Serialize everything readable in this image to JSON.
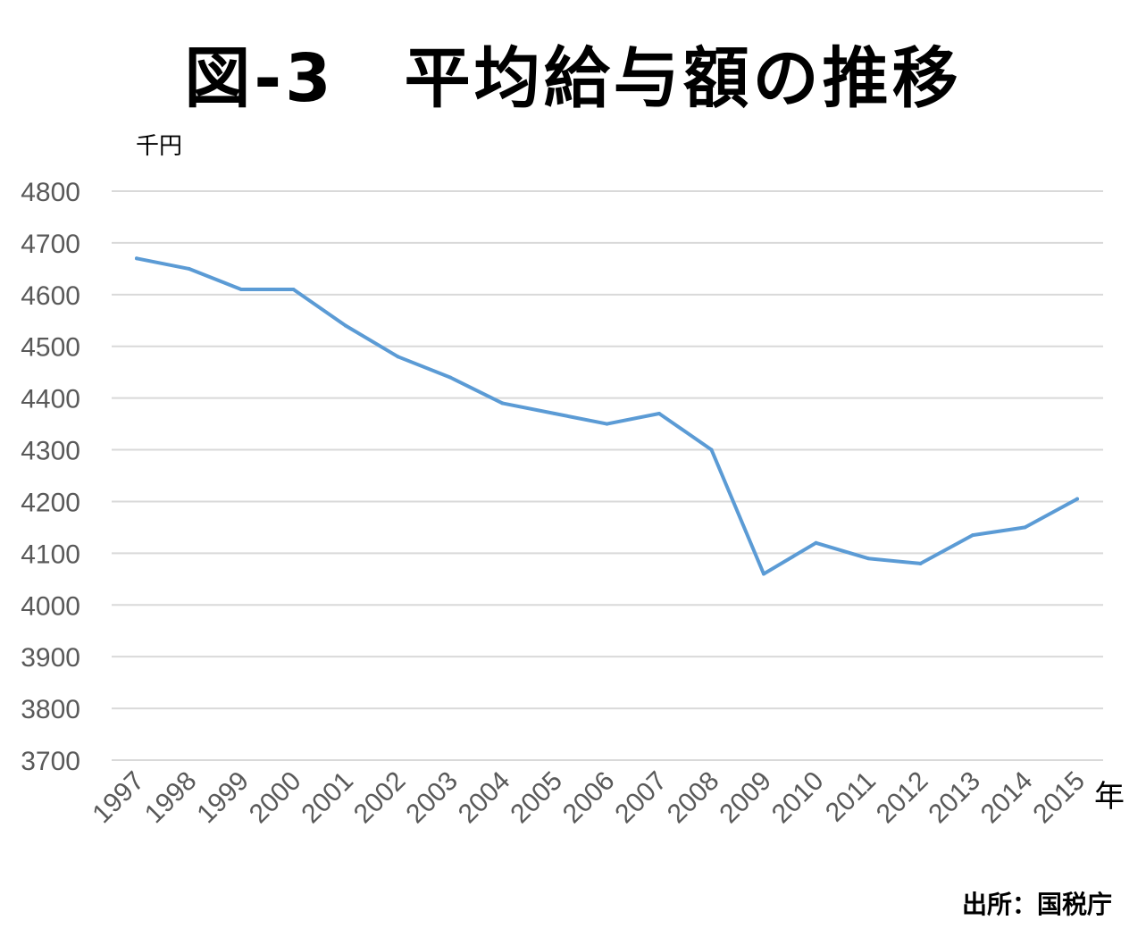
{
  "chart_data": {
    "type": "line",
    "title": "図-3　平均給与額の推移",
    "ylabel": "千円",
    "xlabel": "年",
    "categories": [
      "1997",
      "1998",
      "1999",
      "2000",
      "2001",
      "2002",
      "2003",
      "2004",
      "2005",
      "2006",
      "2007",
      "2008",
      "2009",
      "2010",
      "2011",
      "2012",
      "2013",
      "2014",
      "2015"
    ],
    "series": [
      {
        "values": [
          4670,
          4650,
          4610,
          4610,
          4540,
          4480,
          4440,
          4390,
          4370,
          4350,
          4370,
          4300,
          4060,
          4120,
          4090,
          4080,
          4135,
          4150,
          4205
        ]
      }
    ],
    "ylim": [
      3700,
      4800
    ],
    "yticks": [
      4800,
      4700,
      4600,
      4500,
      4400,
      4300,
      4200,
      4100,
      4000,
      3900,
      3800,
      3700
    ],
    "grid": true,
    "legend": "none",
    "source": "出所：国税庁",
    "colors": {
      "line": "#5b9bd5",
      "grid": "#d9d9d9",
      "tick_text": "#595959"
    }
  }
}
